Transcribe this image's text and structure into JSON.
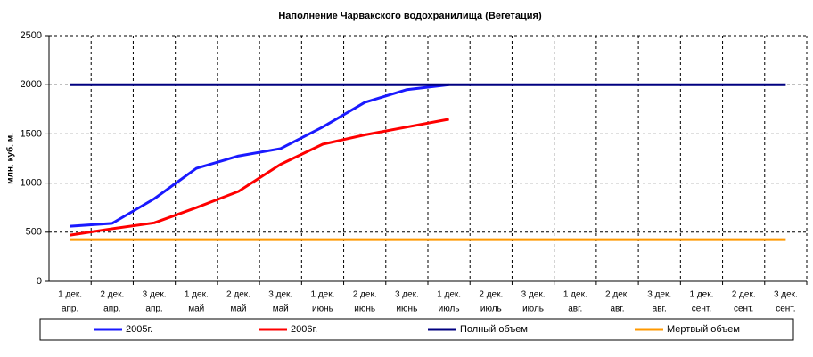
{
  "chart_data": {
    "type": "line",
    "title": "Наполнение Чарвакского водохранилища  (Вегетация)",
    "y_label": "млн. куб. м.",
    "categories": [
      [
        "1 дек.",
        "апр."
      ],
      [
        "2 дек.",
        "апр."
      ],
      [
        "3 дек.",
        "апр."
      ],
      [
        "1 дек.",
        "май"
      ],
      [
        "2 дек.",
        "май"
      ],
      [
        "3 дек.",
        "май"
      ],
      [
        "1 дек.",
        "июнь"
      ],
      [
        "2 дек.",
        "июнь"
      ],
      [
        "3 дек.",
        "июнь"
      ],
      [
        "1 дек.",
        "июль"
      ],
      [
        "2 дек.",
        "июль"
      ],
      [
        "3 дек.",
        "июль"
      ],
      [
        "1 дек.",
        "авг."
      ],
      [
        "2 дек.",
        "авг."
      ],
      [
        "3 дек.",
        "авг."
      ],
      [
        "1 дек.",
        "сент."
      ],
      [
        "2 дек.",
        "сент."
      ],
      [
        "3 дек.",
        "сент."
      ]
    ],
    "series": [
      {
        "name": "2005г.",
        "color": "#1a1aff",
        "values": [
          560,
          590,
          840,
          1150,
          1275,
          1350,
          1570,
          1820,
          1950,
          2000,
          null,
          null,
          null,
          null,
          null,
          null,
          null,
          null
        ]
      },
      {
        "name": "2006г.",
        "color": "#ff0000",
        "values": [
          470,
          535,
          595,
          750,
          915,
          1190,
          1395,
          1490,
          1570,
          1650,
          null,
          null,
          null,
          null,
          null,
          null,
          null,
          null
        ]
      },
      {
        "name": "Полный объем",
        "color": "#000080",
        "values": [
          2000,
          2000,
          2000,
          2000,
          2000,
          2000,
          2000,
          2000,
          2000,
          2000,
          2000,
          2000,
          2000,
          2000,
          2000,
          2000,
          2000,
          2000
        ]
      },
      {
        "name": "Мертвый объем",
        "color": "#ff9900",
        "values": [
          425,
          425,
          425,
          425,
          425,
          425,
          425,
          425,
          425,
          425,
          425,
          425,
          425,
          425,
          425,
          425,
          425,
          425
        ]
      }
    ],
    "ylim": [
      0,
      2500
    ],
    "yticks": [
      0,
      500,
      1000,
      1500,
      2000,
      2500
    ],
    "grid": true,
    "legend": "bottom"
  }
}
